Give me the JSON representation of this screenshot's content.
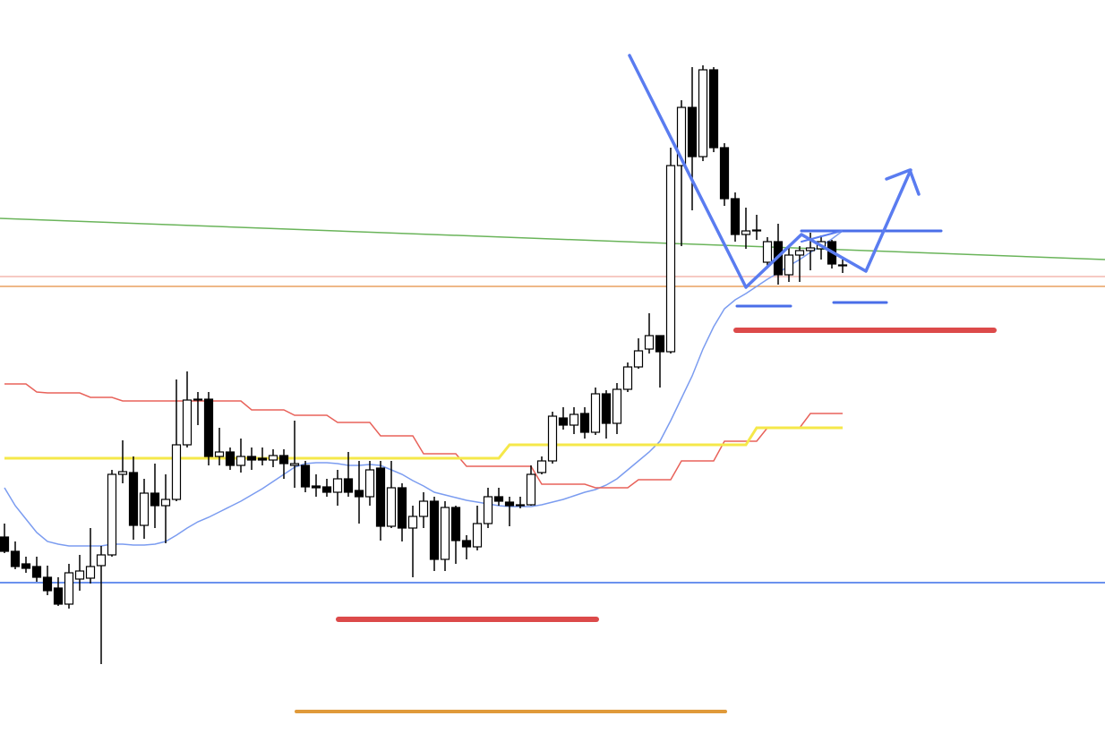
{
  "chart_data": {
    "type": "candlestick",
    "ylim": [
      0,
      838
    ],
    "up_color": "#ffffff",
    "down_color": "#000000",
    "open": [
      238,
      222,
      208,
      205,
      193,
      181,
      163,
      191,
      192,
      206,
      218,
      308,
      310,
      251,
      287,
      273,
      280,
      341,
      391,
      392,
      328,
      333,
      318,
      328,
      326,
      324,
      329,
      318,
      318,
      295,
      294,
      288,
      303,
      290,
      283,
      315,
      250,
      293,
      248,
      261,
      278,
      213,
      271,
      234,
      227,
      253,
      283,
      277,
      273,
      274,
      310,
      323,
      371,
      363,
      376,
      355,
      398,
      365,
      403,
      428,
      448,
      463,
      445,
      653,
      718,
      663,
      760,
      673,
      616,
      576,
      580,
      545,
      568,
      531,
      553,
      558,
      560,
      568,
      541
    ],
    "high": [
      253,
      233,
      216,
      216,
      206,
      193,
      208,
      218,
      248,
      228,
      313,
      346,
      328,
      303,
      320,
      308,
      414,
      423,
      400,
      400,
      360,
      338,
      348,
      338,
      338,
      336,
      336,
      368,
      323,
      308,
      303,
      313,
      333,
      323,
      323,
      323,
      323,
      298,
      273,
      288,
      283,
      278,
      273,
      240,
      273,
      293,
      293,
      283,
      283,
      318,
      328,
      378,
      383,
      383,
      383,
      405,
      402,
      410,
      433,
      460,
      488,
      463,
      673,
      726,
      763,
      765,
      763,
      678,
      623,
      606,
      598,
      573,
      588,
      563,
      563,
      578,
      575,
      570,
      548
    ],
    "low": [
      220,
      202,
      198,
      188,
      173,
      161,
      158,
      178,
      186,
      96,
      216,
      298,
      235,
      236,
      248,
      231,
      278,
      338,
      363,
      318,
      318,
      313,
      310,
      313,
      318,
      316,
      303,
      293,
      288,
      283,
      283,
      273,
      283,
      253,
      273,
      234,
      248,
      233,
      193,
      248,
      200,
      200,
      208,
      213,
      223,
      248,
      273,
      250,
      270,
      273,
      308,
      320,
      358,
      353,
      348,
      352,
      348,
      353,
      400,
      426,
      443,
      405,
      443,
      563,
      603,
      658,
      668,
      608,
      568,
      560,
      570,
      538,
      520,
      523,
      523,
      536,
      548,
      538,
      533
    ],
    "close": [
      222,
      205,
      203,
      193,
      178,
      163,
      198,
      200,
      205,
      218,
      308,
      311,
      251,
      287,
      273,
      280,
      341,
      391,
      392,
      328,
      333,
      318,
      328,
      324,
      324,
      329,
      320,
      320,
      294,
      293,
      288,
      303,
      288,
      283,
      313,
      250,
      293,
      248,
      261,
      278,
      213,
      271,
      234,
      227,
      253,
      283,
      278,
      273,
      274,
      308,
      323,
      373,
      363,
      375,
      355,
      398,
      365,
      403,
      428,
      446,
      463,
      445,
      653,
      718,
      663,
      760,
      673,
      616,
      576,
      580,
      581,
      568,
      531,
      553,
      558,
      561,
      568,
      543,
      542
    ],
    "lines": [
      {
        "color": "#7b9cf0",
        "values": [
          293,
          273,
          258,
          243,
          233,
          230,
          228,
          228,
          228,
          228,
          230,
          230,
          229,
          229,
          230,
          233,
          240,
          248,
          255,
          260,
          266,
          272,
          278,
          285,
          292,
          300,
          308,
          316,
          320,
          321,
          321,
          320,
          318,
          318,
          319,
          318,
          313,
          308,
          301,
          295,
          288,
          285,
          282,
          279,
          277,
          275,
          273,
          272,
          272,
          272,
          274,
          277,
          280,
          284,
          288,
          291,
          296,
          303,
          313,
          323,
          333,
          345,
          368,
          393,
          418,
          448,
          473,
          493,
          503,
          510,
          518,
          526,
          533,
          541,
          548,
          556,
          563,
          571,
          580
        ]
      },
      {
        "color": "#e8625a",
        "values": [
          409,
          409,
          409,
          400,
          399,
          399,
          399,
          399,
          394,
          394,
          394,
          390,
          390,
          390,
          390,
          390,
          390,
          390,
          390,
          390,
          390,
          390,
          390,
          380,
          380,
          380,
          380,
          374,
          374,
          374,
          374,
          366,
          366,
          366,
          366,
          351,
          351,
          351,
          351,
          331,
          331,
          331,
          331,
          317,
          317,
          317,
          317,
          317,
          317,
          317,
          297,
          297,
          297,
          297,
          297,
          293,
          293,
          293,
          293,
          302,
          302,
          302,
          302,
          323,
          323,
          323,
          323,
          345,
          345,
          345,
          345,
          360,
          360,
          360,
          360,
          376,
          376,
          376,
          376
        ]
      },
      {
        "color": "#f5e84a",
        "values": [
          326,
          326,
          326,
          326,
          326,
          326,
          326,
          326,
          326,
          326,
          326,
          326,
          326,
          326,
          326,
          326,
          326,
          326,
          326,
          326,
          326,
          326,
          326,
          326,
          326,
          326,
          326,
          326,
          326,
          326,
          326,
          326,
          326,
          326,
          326,
          326,
          326,
          326,
          326,
          326,
          326,
          326,
          326,
          326,
          326,
          326,
          326,
          341,
          341,
          341,
          341,
          341,
          341,
          341,
          341,
          341,
          341,
          341,
          341,
          341,
          341,
          341,
          341,
          341,
          341,
          341,
          341,
          341,
          341,
          341,
          360,
          360,
          360,
          360,
          360,
          360,
          360,
          360,
          360
        ]
      }
    ],
    "trendline": {
      "color": "#6ab45a",
      "values": [
        594,
        548
      ]
    },
    "levels": [
      {
        "color": "#f4b8b0",
        "value": 529
      },
      {
        "color": "#e8a060",
        "value": 518
      },
      {
        "color": "#3a6ee8",
        "value": 187
      }
    ]
  }
}
